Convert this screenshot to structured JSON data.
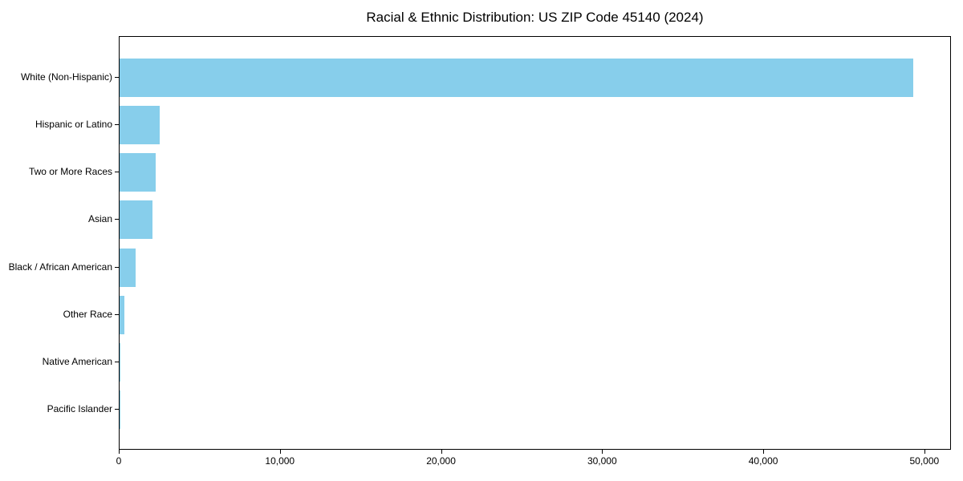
{
  "chart_data": {
    "type": "bar",
    "orientation": "horizontal",
    "title": "Racial & Ethnic Distribution: US ZIP Code 45140 (2024)",
    "categories": [
      "White (Non-Hispanic)",
      "Hispanic or Latino",
      "Two or More Races",
      "Asian",
      "Black / African American",
      "Other Race",
      "Native American",
      "Pacific Islander"
    ],
    "values": [
      49250,
      2480,
      2230,
      2060,
      980,
      300,
      25,
      10
    ],
    "xlabel": "",
    "ylabel": "",
    "xlim": [
      0,
      51650
    ],
    "xticks": [
      0,
      10000,
      20000,
      30000,
      40000,
      50000
    ],
    "xtick_labels": [
      "0",
      "10,000",
      "20,000",
      "30,000",
      "40,000",
      "50,000"
    ],
    "bar_color": "#87CEEB",
    "text_color": "#000000",
    "grid": false,
    "legend": null
  }
}
